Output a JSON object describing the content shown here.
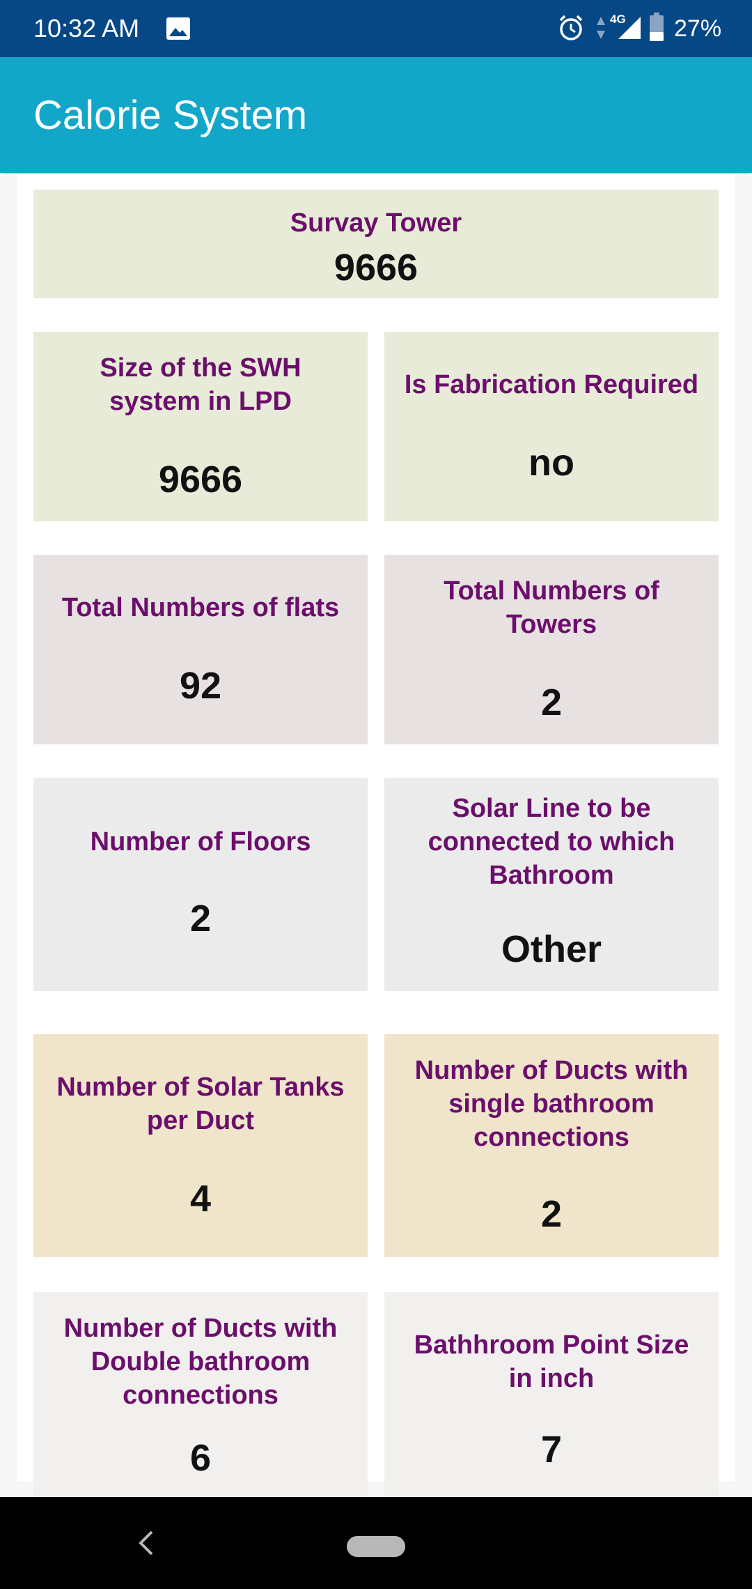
{
  "status_bar": {
    "time": "10:32 AM",
    "network": "4G",
    "battery": "27%",
    "icons": [
      "image-icon",
      "alarm-icon",
      "data-arrows-icon",
      "signal-icon",
      "battery-icon"
    ]
  },
  "app_bar": {
    "title": "Calorie System"
  },
  "colors": {
    "status_bar": "#054885",
    "app_bar": "#12a6c9",
    "label_text": "#6b0f6b",
    "card_green": "#e8ebd8",
    "card_mauve": "#e8e1e2",
    "card_gray": "#ebebeb",
    "card_tan": "#f0e5cb",
    "card_light": "#f1f0ee"
  },
  "cards": [
    {
      "label": "Survay Tower",
      "value": "9666"
    },
    {
      "label": "Size of the SWH system in LPD",
      "value": "9666"
    },
    {
      "label": "Is Fabrication Required",
      "value": "no"
    },
    {
      "label": "Total Numbers of flats",
      "value": "92"
    },
    {
      "label": "Total Numbers of Towers",
      "value": "2"
    },
    {
      "label": "Number of Floors",
      "value": "2"
    },
    {
      "label": "Solar Line to be connected to which Bathroom",
      "value": "Other"
    },
    {
      "label": "Number of Solar Tanks per Duct",
      "value": "4"
    },
    {
      "label": "Number of Ducts with single bathroom connections",
      "value": "2"
    },
    {
      "label": "Number of Ducts with Double bathroom connections",
      "value": "6"
    },
    {
      "label": "Bathhroom Point Size in inch",
      "value": "7"
    }
  ]
}
